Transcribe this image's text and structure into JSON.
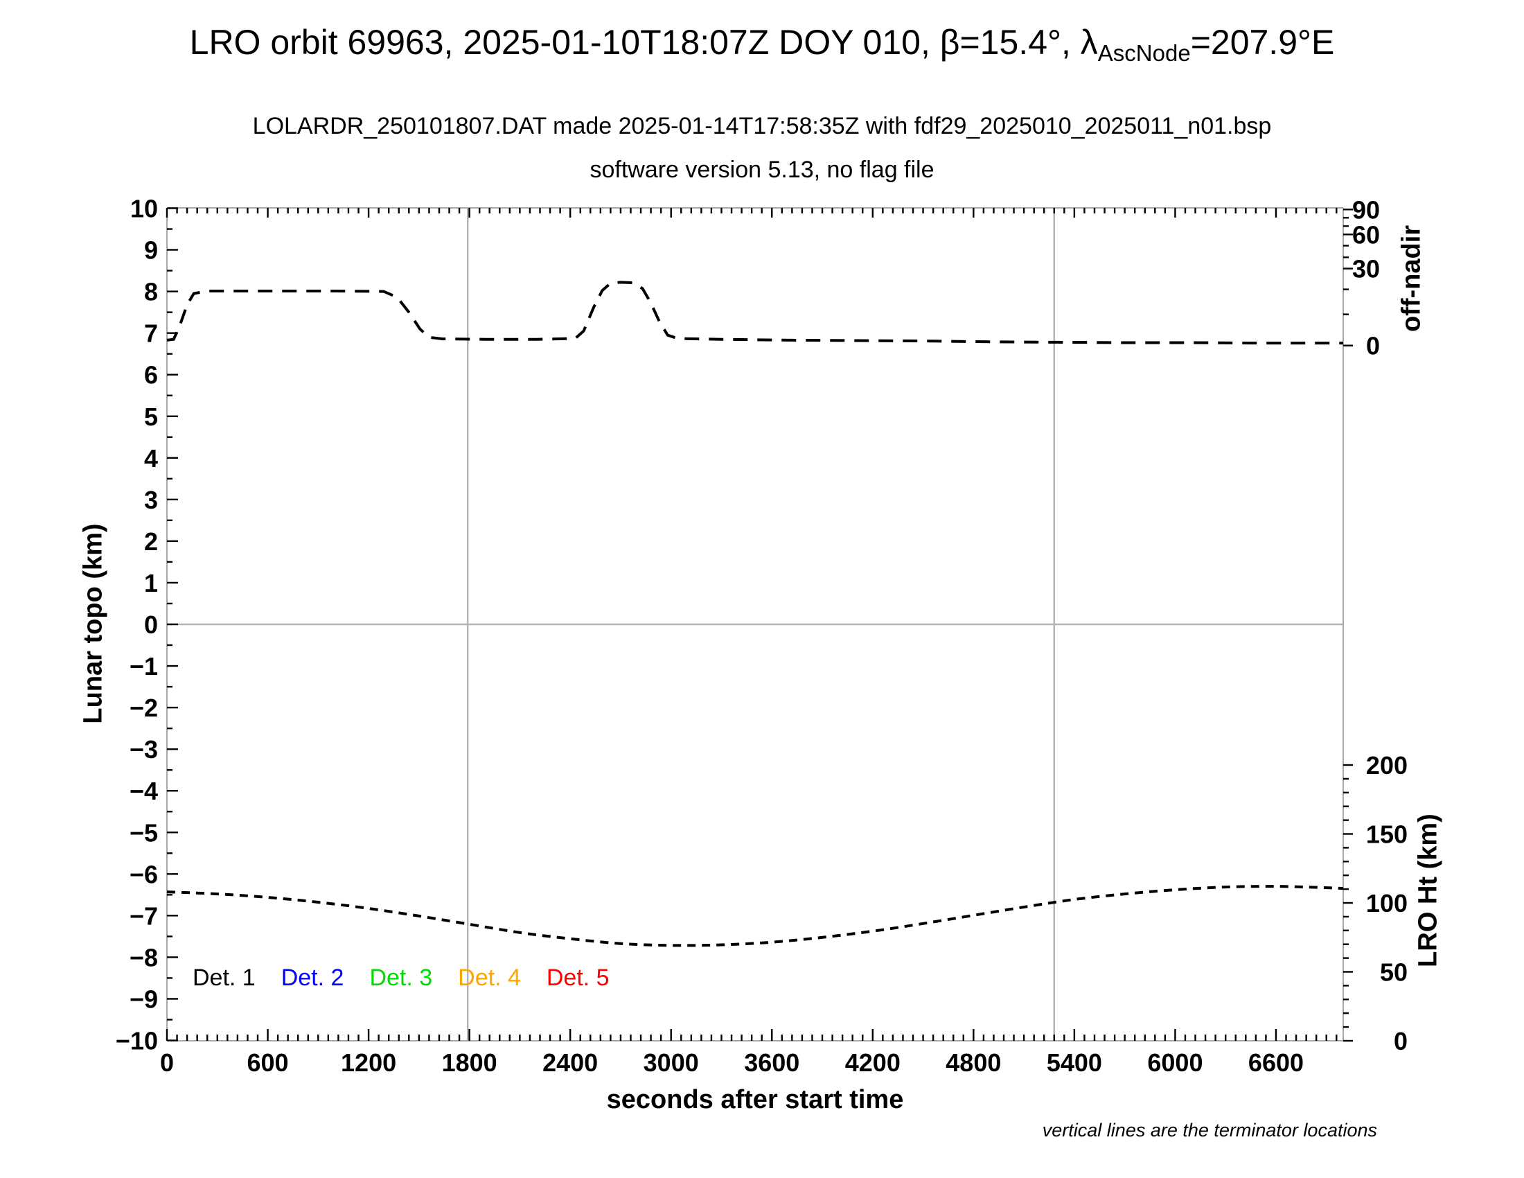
{
  "header": {
    "title": {
      "before": "LRO orbit 69963, 2025-01-10T18:07Z DOY 010, β=15.4°, λ",
      "subscript": "AscNode",
      "after": "=207.9°E"
    },
    "subtitle1": "LOLARDR_250101807.DAT made 2025-01-14T17:58:35Z with fdf29_2025010_2025011_n01.bsp",
    "subtitle2": "software version 5.13, no flag file"
  },
  "axes": {
    "x": {
      "label": "seconds after start time",
      "min": 0,
      "max": 7000,
      "major_step": 600,
      "minor_step": 60,
      "tick_labels": [
        "0",
        "600",
        "1200",
        "1800",
        "2400",
        "3000",
        "3600",
        "4200",
        "4800",
        "5400",
        "6000",
        "6600"
      ]
    },
    "y_left": {
      "label": "Lunar topo (km)",
      "min": -10,
      "max": 10,
      "major_step": 1,
      "minor_step": 0.5,
      "tick_labels": [
        "−10",
        "−9",
        "−8",
        "−7",
        "−6",
        "−5",
        "−4",
        "−3",
        "−2",
        "−1",
        "0",
        "1",
        "2",
        "3",
        "4",
        "5",
        "6",
        "7",
        "8",
        "9",
        "10"
      ]
    },
    "y_right_top": {
      "label": "off-nadir",
      "tick_labels": [
        "90",
        "60",
        "30",
        "0"
      ],
      "tick_topo_units": [
        9.97,
        9.37,
        8.55,
        6.7
      ],
      "minor_tick_topo_units": [
        9.77,
        9.57,
        9.1,
        8.82,
        8.05,
        7.45
      ]
    },
    "y_right_bottom": {
      "label": "LRO Ht (km)",
      "tick_labels": [
        "200",
        "150",
        "100",
        "50",
        "0"
      ],
      "tick_km": [
        200,
        150,
        100,
        50,
        0
      ],
      "minor_step_km": 10
    }
  },
  "legend": [
    {
      "label": "Det. 1",
      "color": "#000000"
    },
    {
      "label": "Det. 2",
      "color": "#0000ff"
    },
    {
      "label": "Det. 3",
      "color": "#00dd00"
    },
    {
      "label": "Det. 4",
      "color": "#ffa500"
    },
    {
      "label": "Det. 5",
      "color": "#ff0000"
    }
  ],
  "note": "vertical lines are the terminator locations",
  "chart_data": {
    "type": "line",
    "title": "LRO orbit 69963, 2025-01-10T18:07Z DOY 010, β=15.4°, λ_AscNode=207.9°E",
    "xlabel": "seconds after start time",
    "x_range": [
      0,
      7000
    ],
    "y_left_range_topo_km": [
      -10,
      10
    ],
    "grid": "off",
    "terminator_lines_s": [
      1790,
      5280
    ],
    "zero_topo_line": 0,
    "line_style": "black dashed",
    "series": [
      {
        "name": "spacecraft off-nadir angle",
        "axis": "right-top (off-nadir, deg, nonlinear)",
        "points_t_deg_topo": [
          [
            0,
            2.1,
            6.83
          ],
          [
            40,
            2.4,
            6.85
          ],
          [
            80,
            8,
            7.22
          ],
          [
            120,
            16,
            7.68
          ],
          [
            160,
            20.5,
            7.95
          ],
          [
            240,
            21.5,
            8.01
          ],
          [
            600,
            21.5,
            8.01
          ],
          [
            1000,
            21.5,
            8.01
          ],
          [
            1290,
            21.3,
            8.0
          ],
          [
            1370,
            19.5,
            7.86
          ],
          [
            1440,
            13.5,
            7.5
          ],
          [
            1505,
            7,
            7.1
          ],
          [
            1560,
            3.5,
            6.9
          ],
          [
            1640,
            2.6,
            6.86
          ],
          [
            1900,
            2.5,
            6.85
          ],
          [
            2200,
            2.5,
            6.85
          ],
          [
            2430,
            2.7,
            6.87
          ],
          [
            2480,
            5.5,
            7.05
          ],
          [
            2540,
            14,
            7.62
          ],
          [
            2590,
            21.5,
            8.02
          ],
          [
            2640,
            24.5,
            8.2
          ],
          [
            2700,
            25,
            8.22
          ],
          [
            2770,
            24.8,
            8.21
          ],
          [
            2830,
            22.5,
            8.07
          ],
          [
            2880,
            17,
            7.72
          ],
          [
            2930,
            9.5,
            7.28
          ],
          [
            2980,
            4,
            6.95
          ],
          [
            3040,
            2.8,
            6.87
          ],
          [
            3300,
            2.5,
            6.85
          ],
          [
            3700,
            2.3,
            6.83
          ],
          [
            4100,
            2.2,
            6.82
          ],
          [
            4500,
            2.0,
            6.81
          ],
          [
            4900,
            1.8,
            6.79
          ],
          [
            5300,
            1.7,
            6.78
          ],
          [
            5700,
            1.6,
            6.77
          ],
          [
            6100,
            1.5,
            6.77
          ],
          [
            6500,
            1.4,
            6.76
          ],
          [
            6900,
            1.4,
            6.76
          ],
          [
            7000,
            1.4,
            6.76
          ]
        ]
      },
      {
        "name": "LRO height above surface",
        "axis": "right-bottom (LRO Ht, km, linear)",
        "points_t_km": [
          [
            0,
            108
          ],
          [
            300,
            106.5
          ],
          [
            600,
            104
          ],
          [
            900,
            100.5
          ],
          [
            1200,
            96
          ],
          [
            1500,
            90.5
          ],
          [
            1800,
            84.5
          ],
          [
            2100,
            78.5
          ],
          [
            2400,
            74
          ],
          [
            2700,
            70.5
          ],
          [
            3000,
            69.2
          ],
          [
            3300,
            69.6
          ],
          [
            3600,
            71.5
          ],
          [
            3900,
            75
          ],
          [
            4200,
            79.5
          ],
          [
            4500,
            85
          ],
          [
            4800,
            91
          ],
          [
            5100,
            97
          ],
          [
            5400,
            102.5
          ],
          [
            5700,
            106.5
          ],
          [
            6000,
            109.5
          ],
          [
            6300,
            111.5
          ],
          [
            6600,
            112
          ],
          [
            6900,
            111
          ],
          [
            7000,
            110.5
          ]
        ]
      }
    ]
  }
}
